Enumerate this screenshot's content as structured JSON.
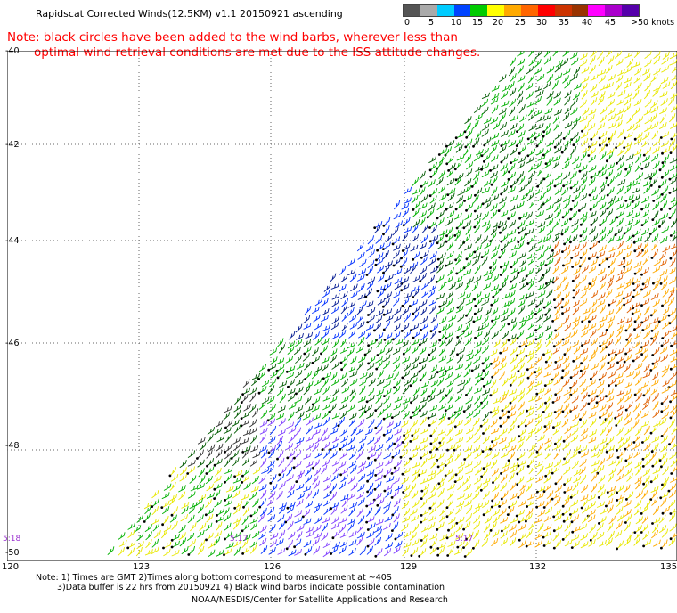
{
  "title": "Rapidscat Corrected Winds(12.5KM) v1.1 20150921 ascending",
  "note": {
    "line1": "Note: black circles have been added to the wind barbs, wherever less than",
    "line2": "optimal wind retrieval conditions are met due to the ISS attitude changes."
  },
  "colorbar": {
    "colors": [
      "#555555",
      "#aaaaaa",
      "#00ccff",
      "#0044ff",
      "#00cc00",
      "#ffff00",
      "#ffaa00",
      "#ff6600",
      "#ff0000",
      "#cc3300",
      "#993300",
      "#ff00ff",
      "#aa00cc",
      "#5500aa"
    ],
    "labels": [
      "0",
      "5",
      "10",
      "15",
      "20",
      "25",
      "30",
      "35",
      "40",
      "45",
      ">50 knots"
    ]
  },
  "latitude_labels": [
    "-40",
    "-42",
    "-44",
    "-46",
    "-48",
    "-50"
  ],
  "longitude_labels": [
    "120",
    "123",
    "126",
    "129",
    "132",
    "135"
  ],
  "time_labels": [
    "5:18",
    "5:17",
    "5:17"
  ],
  "footer": {
    "line1": "Note: 1) Times are GMT 2)Times along bottom correspond to measurement at ~40S",
    "line2": "3)Data buffer is 22 hrs from 20150921 4) Black wind barbs indicate possible contamination"
  },
  "credit": "NOAA/NESDIS/Center for Satellite Applications and Research"
}
